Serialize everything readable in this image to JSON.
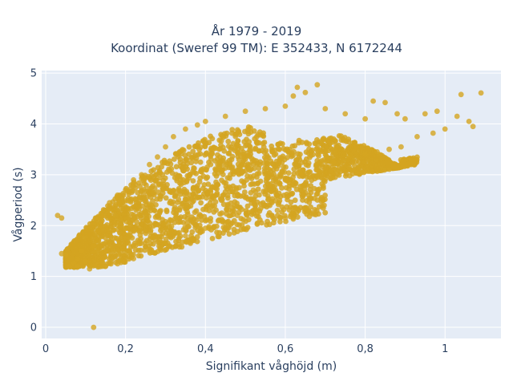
{
  "chart_data": {
    "type": "scatter",
    "title": "År 1979 - 2019",
    "subtitle": "Koordinat (Sweref 99 TM): E 352433, N 6172244",
    "xlabel": "Signifikant våghöjd (m)",
    "ylabel": "Vågperiod (s)",
    "xlim": [
      -0.01,
      1.14
    ],
    "ylim": [
      -0.22,
      5.05
    ],
    "xticks": [
      "0",
      "0,2",
      "0,4",
      "0,6",
      "0,8",
      "1"
    ],
    "yticks": [
      "0",
      "1",
      "2",
      "3",
      "4",
      "5"
    ],
    "xtick_values": [
      0,
      0.2,
      0.4,
      0.6,
      0.8,
      1.0
    ],
    "ytick_values": [
      0,
      1,
      2,
      3,
      4,
      5
    ],
    "grid": true,
    "marker_color": "#D4A521",
    "plot_bg": "#E5ECF6",
    "series": [
      {
        "values": [
          [
            0.12,
            0.0
          ],
          [
            0.04,
            1.45
          ],
          [
            0.05,
            1.42
          ],
          [
            0.06,
            1.2
          ],
          [
            0.07,
            1.25
          ],
          [
            0.08,
            1.35
          ],
          [
            0.09,
            1.5
          ],
          [
            0.1,
            1.3
          ],
          [
            0.12,
            1.6
          ],
          [
            0.13,
            1.9
          ],
          [
            0.14,
            2.2
          ],
          [
            0.16,
            2.45
          ],
          [
            0.18,
            2.6
          ],
          [
            0.2,
            2.7
          ],
          [
            0.22,
            2.9
          ],
          [
            0.24,
            3.0
          ],
          [
            0.26,
            3.2
          ],
          [
            0.28,
            3.35
          ],
          [
            0.3,
            3.55
          ],
          [
            0.32,
            3.75
          ],
          [
            0.35,
            3.9
          ],
          [
            0.38,
            3.98
          ],
          [
            0.4,
            4.05
          ],
          [
            0.45,
            4.15
          ],
          [
            0.5,
            4.25
          ],
          [
            0.55,
            4.3
          ],
          [
            0.6,
            4.35
          ],
          [
            0.62,
            4.55
          ],
          [
            0.63,
            4.72
          ],
          [
            0.65,
            4.62
          ],
          [
            0.68,
            4.77
          ],
          [
            0.7,
            4.3
          ],
          [
            0.75,
            4.2
          ],
          [
            0.8,
            4.1
          ],
          [
            0.82,
            4.45
          ],
          [
            0.85,
            4.42
          ],
          [
            0.88,
            4.2
          ],
          [
            0.9,
            4.1
          ],
          [
            0.95,
            4.2
          ],
          [
            0.98,
            4.25
          ],
          [
            1.03,
            4.15
          ],
          [
            1.04,
            4.58
          ],
          [
            1.09,
            4.61
          ],
          [
            1.06,
            4.05
          ],
          [
            1.07,
            3.95
          ],
          [
            1.0,
            3.9
          ],
          [
            0.97,
            3.82
          ],
          [
            0.93,
            3.75
          ],
          [
            0.89,
            3.55
          ],
          [
            0.86,
            3.5
          ],
          [
            0.83,
            3.45
          ],
          [
            0.8,
            3.4
          ],
          [
            0.76,
            3.35
          ],
          [
            0.72,
            3.25
          ],
          [
            0.68,
            3.1
          ],
          [
            0.64,
            3.0
          ],
          [
            0.6,
            2.9
          ],
          [
            0.56,
            2.8
          ],
          [
            0.52,
            2.7
          ],
          [
            0.5,
            2.55
          ],
          [
            0.6,
            2.15
          ],
          [
            0.62,
            2.13
          ],
          [
            0.58,
            2.3
          ],
          [
            0.53,
            2.25
          ],
          [
            0.48,
            2.2
          ],
          [
            0.45,
            2.05
          ],
          [
            0.4,
            1.95
          ],
          [
            0.35,
            1.8
          ],
          [
            0.3,
            1.65
          ],
          [
            0.26,
            1.5
          ],
          [
            0.22,
            1.35
          ],
          [
            0.18,
            1.25
          ],
          [
            0.15,
            1.2
          ],
          [
            0.11,
            1.15
          ],
          [
            0.08,
            1.2
          ],
          [
            0.03,
            2.2
          ],
          [
            0.04,
            2.15
          ]
        ]
      }
    ]
  }
}
